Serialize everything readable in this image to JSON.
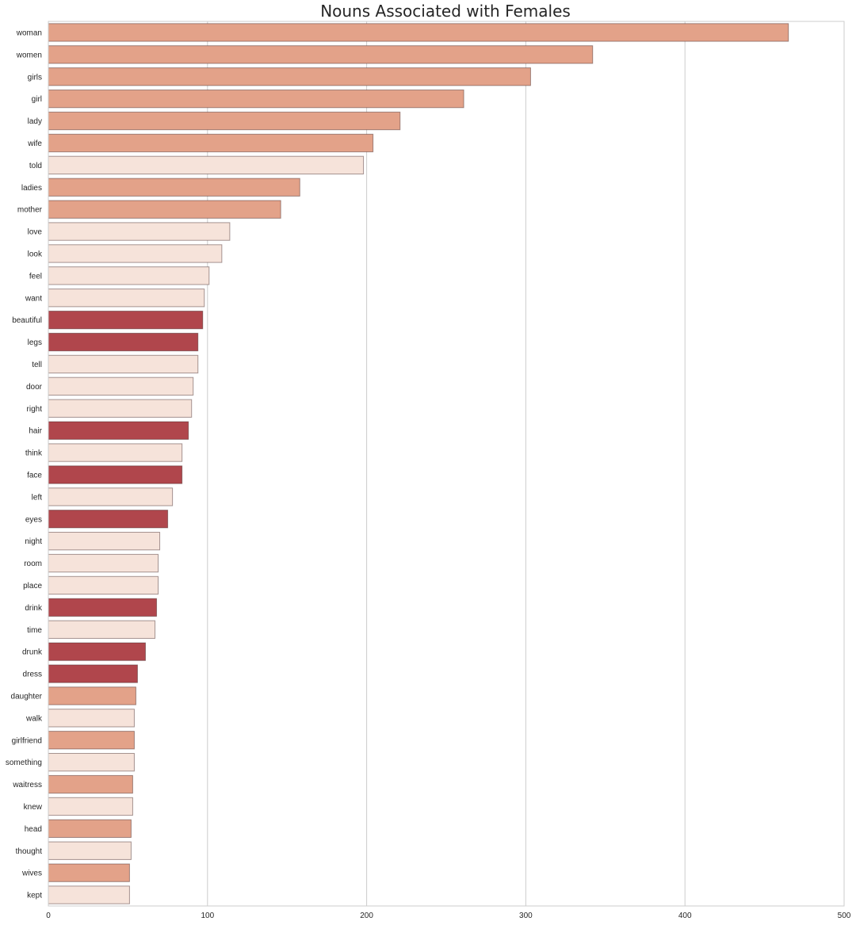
{
  "chart_data": {
    "type": "bar",
    "orientation": "horizontal",
    "title": "Nouns Associated with Females",
    "xlabel": "",
    "ylabel": "",
    "xlim": [
      0,
      500
    ],
    "xticks": [
      "0",
      "100",
      "200",
      "300",
      "400",
      "500"
    ],
    "grid": true,
    "category_colors": {
      "people": "#e3a289",
      "body_appearance": "#b0464c",
      "other": "#f6e3da"
    },
    "categories": [
      "woman",
      "women",
      "girls",
      "girl",
      "lady",
      "wife",
      "told",
      "ladies",
      "mother",
      "love",
      "look",
      "feel",
      "want",
      "beautiful",
      "legs",
      "tell",
      "door",
      "right",
      "hair",
      "think",
      "face",
      "left",
      "eyes",
      "night",
      "room",
      "place",
      "drink",
      "time",
      "drunk",
      "dress",
      "daughter",
      "walk",
      "girlfriend",
      "something",
      "waitress",
      "knew",
      "head",
      "thought",
      "wives",
      "kept"
    ],
    "values": [
      465,
      342,
      303,
      261,
      221,
      204,
      198,
      158,
      146,
      114,
      109,
      101,
      98,
      97,
      94,
      94,
      91,
      90,
      88,
      84,
      84,
      78,
      75,
      70,
      69,
      69,
      68,
      67,
      61,
      56,
      55,
      54,
      54,
      54,
      53,
      53,
      52,
      52,
      51,
      51
    ],
    "groups": [
      "people",
      "people",
      "people",
      "people",
      "people",
      "people",
      "other",
      "people",
      "people",
      "other",
      "other",
      "other",
      "other",
      "body_appearance",
      "body_appearance",
      "other",
      "other",
      "other",
      "body_appearance",
      "other",
      "body_appearance",
      "other",
      "body_appearance",
      "other",
      "other",
      "other",
      "body_appearance",
      "other",
      "body_appearance",
      "body_appearance",
      "people",
      "other",
      "people",
      "other",
      "people",
      "other",
      "people",
      "other",
      "people",
      "other"
    ]
  }
}
